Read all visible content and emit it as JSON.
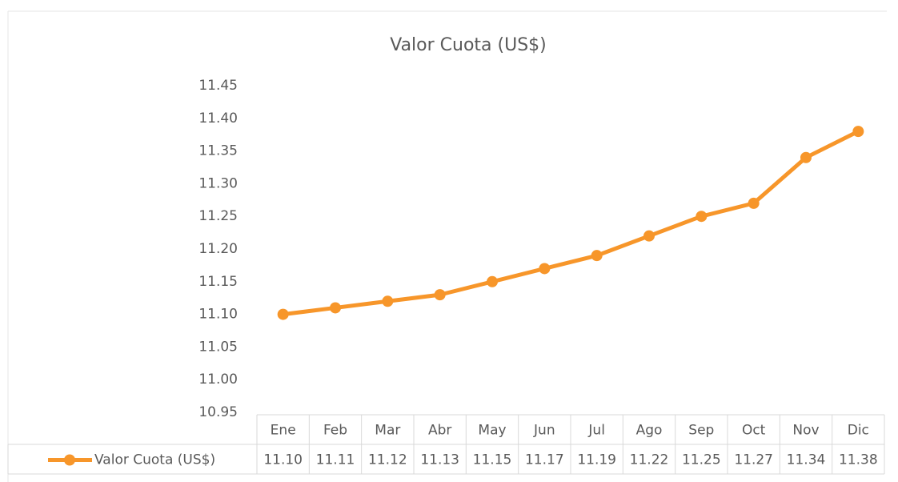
{
  "chart_data": {
    "type": "line",
    "title": "Valor Cuota (US$)",
    "categories": [
      "Ene",
      "Feb",
      "Mar",
      "Abr",
      "May",
      "Jun",
      "Jul",
      "Ago",
      "Sep",
      "Oct",
      "Nov",
      "Dic"
    ],
    "series": [
      {
        "name": "Valor Cuota (US$)",
        "color": "#f7962a",
        "values": [
          11.1,
          11.11,
          11.12,
          11.13,
          11.15,
          11.17,
          11.19,
          11.22,
          11.25,
          11.27,
          11.34,
          11.38
        ],
        "value_labels": [
          "11.10",
          "11.11",
          "11.12",
          "11.13",
          "11.15",
          "11.17",
          "11.19",
          "11.22",
          "11.25",
          "11.27",
          "11.34",
          "11.38"
        ]
      }
    ],
    "ylim": [
      10.95,
      11.45
    ],
    "yticks": [
      {
        "value": 10.95,
        "label": "10.95"
      },
      {
        "value": 11.0,
        "label": "11.00"
      },
      {
        "value": 11.05,
        "label": "11.05"
      },
      {
        "value": 11.1,
        "label": "11.10"
      },
      {
        "value": 11.15,
        "label": "11.15"
      },
      {
        "value": 11.2,
        "label": "11.20"
      },
      {
        "value": 11.25,
        "label": "11.25"
      },
      {
        "value": 11.3,
        "label": "11.30"
      },
      {
        "value": 11.35,
        "label": "11.35"
      },
      {
        "value": 11.4,
        "label": "11.40"
      },
      {
        "value": 11.45,
        "label": "11.45"
      }
    ],
    "grid": false,
    "data_table": true
  }
}
